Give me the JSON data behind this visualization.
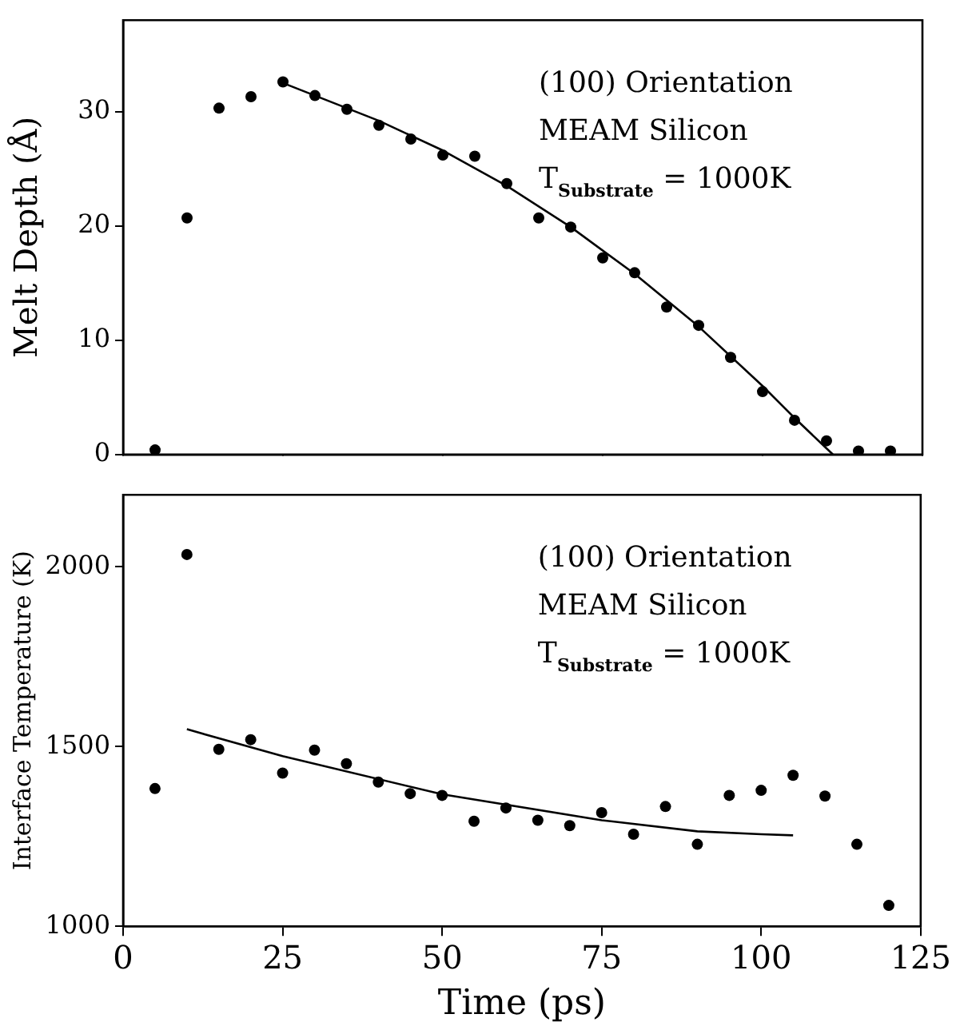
{
  "chart_data": [
    {
      "type": "scatter",
      "ylabel": "Melt Depth (Å)",
      "xlim": [
        0,
        125
      ],
      "xticks": [
        0,
        25,
        50,
        75,
        100,
        125
      ],
      "ylim": [
        0,
        38
      ],
      "yticks": [
        0,
        10,
        20,
        30
      ],
      "tick_labels": "y",
      "marker": "circle",
      "legend": false,
      "annotations": [
        "(100) Orientation",
        "MEAM Silicon",
        "T$_{Substrate}$ = 1000K"
      ],
      "series": [
        {
          "type": "scatter",
          "color": "#000000",
          "x": [
            5,
            10,
            15,
            20,
            25,
            30,
            35,
            40,
            45,
            50,
            55,
            60,
            65,
            70,
            75,
            80,
            85,
            90,
            95,
            100,
            105,
            110,
            115,
            120
          ],
          "values": [
            0.4,
            20.7,
            30.3,
            31.3,
            32.6,
            31.4,
            30.2,
            28.8,
            27.6,
            26.2,
            26.1,
            23.7,
            20.7,
            19.9,
            17.2,
            15.9,
            12.9,
            11.3,
            8.5,
            5.5,
            3.0,
            1.2,
            0.3,
            0.3
          ]
        },
        {
          "type": "line",
          "color": "#000000",
          "marker": "none",
          "x": [
            25,
            40,
            50,
            60,
            70,
            80,
            90,
            100,
            105,
            111
          ],
          "values": [
            32.5,
            29.2,
            26.6,
            23.5,
            19.9,
            15.8,
            11.2,
            6.0,
            3.2,
            0
          ]
        }
      ]
    },
    {
      "type": "scatter",
      "xlabel": "Time (ps)",
      "ylabel": "Interface Temperature (K)",
      "xlim": [
        0,
        125
      ],
      "xticks": [
        0,
        25,
        50,
        75,
        100,
        125
      ],
      "ylim": [
        1000,
        2200
      ],
      "yticks": [
        1000,
        1500,
        2000
      ],
      "marker": "circle",
      "legend": false,
      "annotations": [
        "(100) Orientation",
        "MEAM Silicon",
        "T$_{Substrate}$ = 1000K"
      ],
      "series": [
        {
          "type": "scatter",
          "color": "#000000",
          "x": [
            5,
            10,
            15,
            20,
            25,
            30,
            35,
            40,
            45,
            50,
            55,
            60,
            65,
            70,
            75,
            80,
            85,
            90,
            95,
            100,
            105,
            110,
            115,
            120
          ],
          "values": [
            1383,
            2034,
            1492,
            1519,
            1426,
            1490,
            1452,
            1401,
            1369,
            1364,
            1292,
            1329,
            1295,
            1280,
            1316,
            1256,
            1333,
            1228,
            1364,
            1378,
            1420,
            1362,
            1228,
            1058
          ]
        },
        {
          "type": "line",
          "color": "#000000",
          "marker": "none",
          "x": [
            10,
            25,
            50,
            75,
            90,
            100,
            105
          ],
          "values": [
            1548,
            1473,
            1367,
            1295,
            1264,
            1256,
            1253
          ]
        }
      ]
    }
  ]
}
